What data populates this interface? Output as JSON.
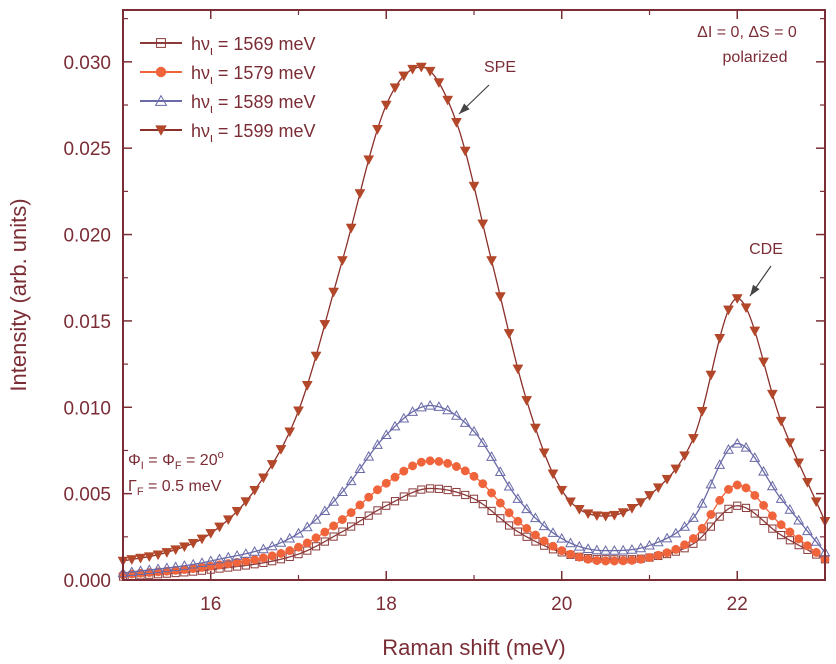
{
  "chart_data": {
    "type": "line",
    "xlabel": "Raman shift (meV)",
    "ylabel": "Intensity (arb. units)",
    "xlim": [
      15,
      23
    ],
    "ylim": [
      0,
      0.033
    ],
    "xticks": [
      16,
      18,
      20,
      22
    ],
    "xtick_labels": [
      "16",
      "18",
      "20",
      "22"
    ],
    "yticks": [
      0.0,
      0.005,
      0.01,
      0.015,
      0.02,
      0.025,
      0.03
    ],
    "ytick_labels": [
      "0.000",
      "0.005",
      "0.010",
      "0.015",
      "0.020",
      "0.025",
      "0.030"
    ],
    "grid": false,
    "legend_position": "top-left",
    "series": [
      {
        "name": "1569",
        "legend_text": "hν",
        "legend_sub": "ι",
        "legend_value": " = 1569  meV",
        "marker": "open-square",
        "color": "#8b3a3a",
        "line_color": "#8b3a3a",
        "x": [
          15.0,
          16.0,
          17.0,
          17.5,
          18.0,
          18.5,
          19.0,
          19.5,
          20.0,
          20.5,
          21.0,
          21.5,
          22.0,
          22.5,
          23.0
        ],
        "y": [
          0.0002,
          0.0006,
          0.0015,
          0.0028,
          0.0043,
          0.0053,
          0.0047,
          0.0028,
          0.0016,
          0.0012,
          0.0013,
          0.0021,
          0.0043,
          0.0026,
          0.0012
        ]
      },
      {
        "name": "1579",
        "legend_text": "hν",
        "legend_sub": "ι",
        "legend_value": " = 1579  meV",
        "marker": "filled-circle",
        "color": "#f0643c",
        "line_color": "#f0643c",
        "x": [
          15.0,
          16.0,
          17.0,
          17.5,
          18.0,
          18.5,
          19.0,
          19.5,
          20.0,
          20.5,
          21.0,
          21.5,
          22.0,
          22.5,
          23.0
        ],
        "y": [
          0.0003,
          0.0008,
          0.0019,
          0.0035,
          0.0056,
          0.0069,
          0.006,
          0.0034,
          0.0017,
          0.0011,
          0.0013,
          0.0024,
          0.0055,
          0.0032,
          0.0012
        ]
      },
      {
        "name": "1589",
        "legend_text": "hν",
        "legend_sub": "ι",
        "legend_value": " = 1589  meV",
        "marker": "open-triangle-up",
        "color": "#6a6aa8",
        "line_color": "#6a6aa8",
        "x": [
          15.0,
          16.0,
          17.0,
          17.5,
          18.0,
          18.5,
          19.0,
          19.5,
          20.0,
          20.5,
          21.0,
          21.5,
          22.0,
          22.5,
          23.0
        ],
        "y": [
          0.0004,
          0.0011,
          0.0027,
          0.0051,
          0.0084,
          0.0101,
          0.0086,
          0.0047,
          0.0024,
          0.0017,
          0.002,
          0.0036,
          0.0079,
          0.0047,
          0.0016
        ]
      },
      {
        "name": "1599",
        "legend_text": "hν",
        "legend_sub": "ι",
        "legend_value": " = 1599  meV",
        "marker": "filled-triangle-down",
        "color": "#b3472a",
        "line_color": "#8b2f2a",
        "x": [
          15.0,
          15.5,
          16.0,
          16.5,
          17.0,
          17.5,
          18.0,
          18.4,
          18.8,
          19.2,
          19.6,
          20.0,
          20.5,
          21.0,
          21.5,
          22.0,
          22.5,
          23.0
        ],
        "y": [
          0.0011,
          0.0016,
          0.0027,
          0.0052,
          0.0098,
          0.0185,
          0.0275,
          0.0297,
          0.0265,
          0.0185,
          0.0104,
          0.0052,
          0.0037,
          0.0049,
          0.0082,
          0.0163,
          0.0092,
          0.0034
        ]
      }
    ],
    "annotations": {
      "spe": "SPE",
      "cde": "CDE",
      "selection_rule": "ΔI = 0, ΔS = 0",
      "polarization": "polarized",
      "phi_line": {
        "p1": "Φ",
        "s1": "I",
        "p2": " = Φ",
        "s2": "F",
        "p3": " = 20",
        "sup": "o"
      },
      "gamma_line": {
        "p1": "Γ",
        "s1": "F",
        "p2": " = 0.5 meV"
      }
    }
  }
}
